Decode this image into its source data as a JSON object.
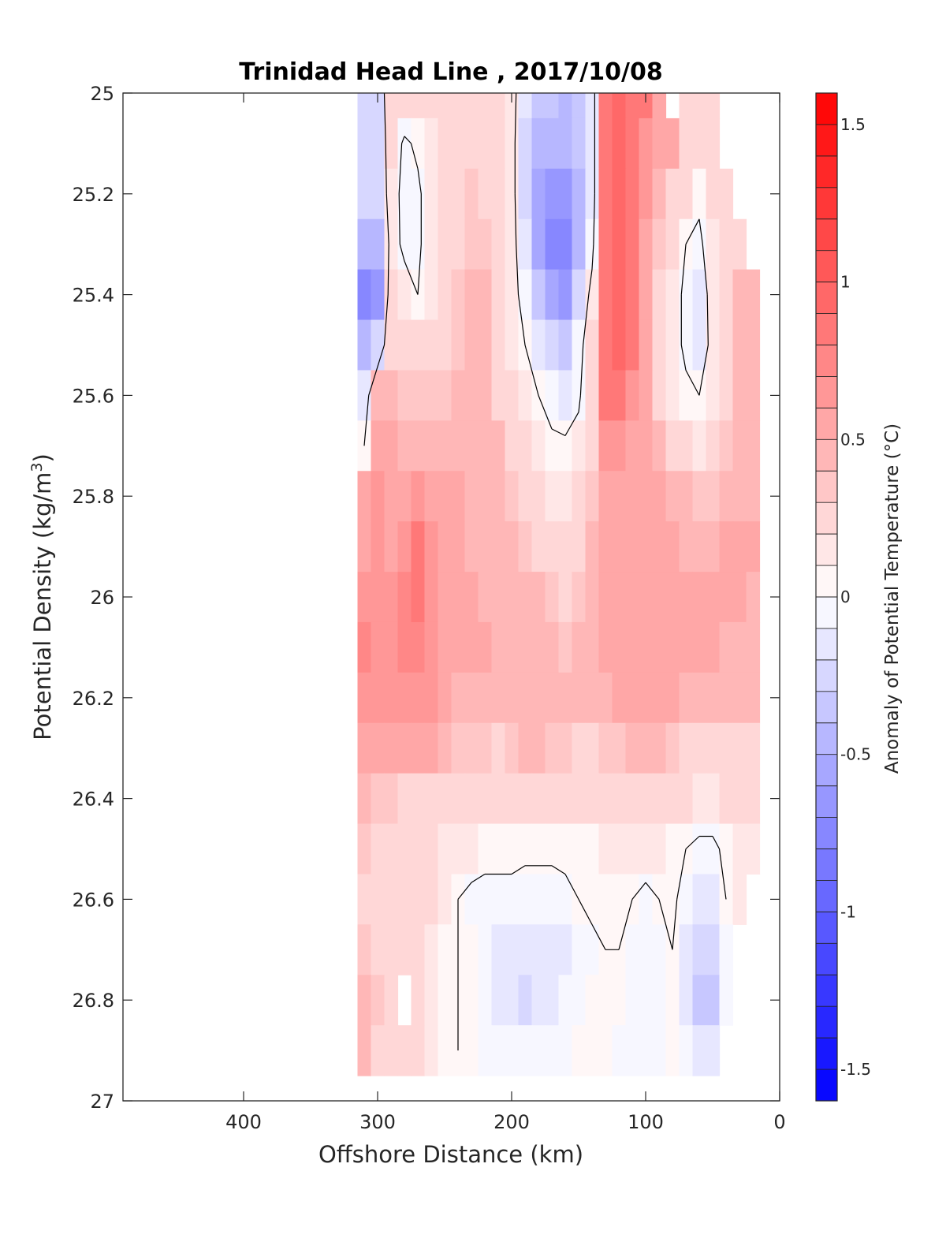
{
  "chart_data": {
    "type": "heatmap",
    "title": "Trinidad Head Line , 2017/10/08",
    "xlabel": "Offshore Distance (km)",
    "ylabel": "Potential Density (kg/m",
    "ylabel_sup": "3",
    "ylabel_close": ")",
    "colorbar_label": "Anomaly of Potential Temperature (°C)",
    "xlim": [
      490,
      0
    ],
    "ylim": [
      25,
      27
    ],
    "x_reversed": true,
    "y_reversed": true,
    "clim": [
      -1.6,
      1.6
    ],
    "contour_step": 0.1,
    "zero_contour": true,
    "x_ticks": [
      400,
      300,
      200,
      100,
      0
    ],
    "x_tick_labels": [
      "400",
      "300",
      "200",
      "100",
      "0"
    ],
    "y_ticks": [
      25,
      25.2,
      25.4,
      25.6,
      25.8,
      26,
      26.2,
      26.4,
      26.6,
      26.8,
      27
    ],
    "y_tick_labels": [
      "25",
      "25.2",
      "25.4",
      "25.6",
      "25.8",
      "26",
      "26.2",
      "26.4",
      "26.6",
      "26.8",
      "27"
    ],
    "colorbar_ticks": [
      1.5,
      1,
      0.5,
      0,
      -0.5,
      -1,
      -1.5
    ],
    "colorbar_tick_labels": [
      "1.5",
      "1",
      "0.5",
      "0",
      "-0.5",
      "-1",
      "-1.5"
    ],
    "colormap": {
      "negative": "#0000ff",
      "zero": "#ffffff",
      "positive": "#ff0000"
    },
    "x": [
      310,
      300,
      290,
      280,
      270,
      260,
      250,
      240,
      230,
      220,
      210,
      200,
      190,
      180,
      170,
      160,
      150,
      140,
      130,
      120,
      110,
      100,
      90,
      80,
      70,
      60,
      50,
      40,
      30,
      20
    ],
    "y": [
      25.0,
      25.1,
      25.2,
      25.3,
      25.4,
      25.5,
      25.6,
      25.7,
      25.8,
      25.9,
      26.0,
      26.1,
      26.2,
      26.3,
      26.4,
      26.5,
      26.6,
      26.7,
      26.8,
      26.9
    ],
    "values": [
      [
        -0.3,
        -0.3,
        0.3,
        0.3,
        0.3,
        0.3,
        0.3,
        0.3,
        0.3,
        0.3,
        0.3,
        0.1,
        -0.2,
        -0.4,
        -0.4,
        -0.5,
        -0.4,
        -0.2,
        0.8,
        0.9,
        0.8,
        0.8,
        0.6,
        null,
        0.3,
        0.2,
        0.3,
        null,
        null,
        null
      ],
      [
        -0.3,
        -0.3,
        0.2,
        -0.05,
        0.05,
        0.1,
        0.25,
        0.3,
        0.3,
        0.3,
        0.3,
        0.1,
        -0.3,
        -0.5,
        -0.5,
        -0.5,
        -0.4,
        -0.2,
        0.8,
        0.9,
        0.8,
        0.7,
        0.5,
        0.5,
        0.3,
        0.2,
        0.2,
        null,
        null,
        null
      ],
      [
        -0.3,
        -0.3,
        0.15,
        -0.1,
        -0.05,
        0.15,
        0.25,
        0.3,
        0.35,
        0.3,
        0.3,
        0.1,
        -0.3,
        -0.6,
        -0.7,
        -0.7,
        -0.5,
        -0.2,
        0.8,
        0.9,
        0.8,
        0.7,
        0.4,
        0.3,
        0.2,
        0.05,
        0.2,
        0.2,
        null,
        null
      ],
      [
        -0.5,
        -0.5,
        0.1,
        -0.05,
        -0.05,
        0.15,
        0.25,
        0.3,
        0.35,
        0.35,
        0.3,
        0.1,
        -0.2,
        -0.6,
        -0.8,
        -0.8,
        -0.5,
        -0.1,
        0.8,
        0.9,
        0.8,
        0.6,
        0.35,
        0.2,
        0.0,
        -0.05,
        0.15,
        0.2,
        0.3,
        null
      ],
      [
        -0.8,
        -0.7,
        0.2,
        0.1,
        0.0,
        0.15,
        0.25,
        0.35,
        0.4,
        0.4,
        0.3,
        0.1,
        -0.1,
        -0.4,
        -0.6,
        -0.7,
        -0.3,
        0.1,
        0.8,
        0.9,
        0.8,
        0.5,
        0.3,
        0.1,
        -0.05,
        -0.15,
        0.1,
        0.3,
        0.4,
        0.4
      ],
      [
        -0.5,
        -0.3,
        0.3,
        0.25,
        0.25,
        0.3,
        0.3,
        0.35,
        0.4,
        0.4,
        0.3,
        0.1,
        0.0,
        -0.2,
        -0.3,
        -0.4,
        -0.1,
        0.2,
        0.8,
        0.9,
        0.8,
        0.5,
        0.3,
        0.1,
        -0.05,
        -0.2,
        0.1,
        0.3,
        0.4,
        0.4
      ],
      [
        -0.2,
        0.4,
        0.4,
        0.35,
        0.35,
        0.35,
        0.35,
        0.4,
        0.4,
        0.4,
        0.3,
        0.2,
        0.1,
        0.0,
        -0.1,
        -0.2,
        -0.05,
        0.3,
        0.8,
        0.8,
        0.7,
        0.5,
        0.3,
        0.15,
        0.05,
        0.0,
        0.15,
        0.3,
        0.4,
        0.4
      ],
      [
        0.0,
        0.6,
        0.5,
        0.45,
        0.45,
        0.45,
        0.45,
        0.45,
        0.4,
        0.4,
        0.4,
        0.3,
        0.2,
        0.1,
        0.05,
        0.05,
        0.1,
        0.3,
        0.7,
        0.7,
        0.6,
        0.5,
        0.4,
        0.3,
        0.2,
        0.15,
        0.25,
        0.35,
        0.4,
        0.4
      ],
      [
        0.6,
        0.7,
        0.6,
        0.6,
        0.65,
        0.6,
        0.5,
        0.5,
        0.45,
        0.4,
        0.4,
        0.35,
        0.25,
        0.2,
        0.15,
        0.1,
        0.2,
        0.35,
        0.6,
        0.6,
        0.6,
        0.55,
        0.5,
        0.45,
        0.4,
        0.35,
        0.35,
        0.4,
        0.45,
        0.45
      ],
      [
        0.6,
        0.7,
        0.6,
        0.7,
        0.8,
        0.7,
        0.55,
        0.5,
        0.45,
        0.45,
        0.4,
        0.4,
        0.35,
        0.3,
        0.25,
        0.2,
        0.25,
        0.4,
        0.6,
        0.6,
        0.6,
        0.6,
        0.55,
        0.5,
        0.45,
        0.4,
        0.45,
        0.5,
        0.6,
        0.5
      ],
      [
        0.7,
        0.7,
        0.65,
        0.75,
        0.8,
        0.7,
        0.55,
        0.5,
        0.5,
        0.45,
        0.45,
        0.45,
        0.4,
        0.4,
        0.35,
        0.3,
        0.35,
        0.45,
        0.6,
        0.6,
        0.6,
        0.6,
        0.55,
        0.55,
        0.5,
        0.5,
        0.5,
        0.5,
        0.5,
        0.45
      ],
      [
        0.75,
        0.7,
        0.7,
        0.75,
        0.75,
        0.7,
        0.55,
        0.5,
        0.5,
        0.5,
        0.45,
        0.45,
        0.45,
        0.4,
        0.4,
        0.35,
        0.4,
        0.45,
        0.5,
        0.55,
        0.6,
        0.6,
        0.55,
        0.55,
        0.5,
        0.5,
        0.5,
        0.45,
        0.45,
        0.45
      ],
      [
        0.7,
        0.65,
        0.65,
        0.7,
        0.7,
        0.65,
        0.5,
        0.45,
        0.45,
        0.45,
        0.4,
        0.4,
        0.4,
        0.4,
        0.4,
        0.4,
        0.4,
        0.45,
        0.45,
        0.5,
        0.55,
        0.55,
        0.5,
        0.5,
        0.45,
        0.45,
        0.45,
        0.4,
        0.4,
        0.4
      ],
      [
        0.55,
        0.5,
        0.5,
        0.5,
        0.55,
        0.5,
        0.4,
        0.35,
        0.35,
        0.35,
        0.3,
        0.35,
        0.4,
        0.4,
        0.35,
        0.35,
        0.3,
        0.3,
        0.35,
        0.35,
        0.4,
        0.4,
        0.4,
        0.35,
        0.3,
        0.3,
        0.3,
        0.3,
        0.3,
        0.3
      ],
      [
        0.4,
        0.35,
        0.35,
        0.3,
        0.3,
        0.3,
        0.25,
        0.2,
        0.2,
        0.2,
        0.2,
        0.2,
        0.2,
        0.2,
        0.2,
        0.2,
        0.2,
        0.2,
        0.25,
        0.25,
        0.25,
        0.25,
        0.2,
        0.2,
        0.2,
        0.15,
        0.15,
        0.2,
        0.2,
        0.2
      ],
      [
        0.35,
        0.3,
        0.3,
        0.3,
        0.25,
        0.2,
        0.15,
        0.1,
        0.1,
        0.05,
        0.05,
        0.05,
        0.05,
        0.05,
        0.05,
        0.05,
        0.05,
        0.05,
        0.1,
        0.1,
        0.1,
        0.1,
        0.1,
        0.05,
        0.0,
        -0.05,
        -0.05,
        0.05,
        0.1,
        0.1
      ],
      [
        0.3,
        0.3,
        0.3,
        0.3,
        0.25,
        0.2,
        0.1,
        0.0,
        -0.05,
        -0.05,
        -0.05,
        -0.05,
        -0.1,
        -0.1,
        -0.1,
        -0.05,
        0.0,
        0.05,
        0.05,
        0.05,
        0.0,
        -0.05,
        0.0,
        0.05,
        -0.1,
        -0.2,
        -0.2,
        0.0,
        0.1,
        null
      ],
      [
        0.35,
        0.3,
        0.3,
        0.2,
        0.25,
        0.15,
        0.05,
        0.0,
        0.0,
        -0.1,
        -0.15,
        -0.2,
        -0.2,
        -0.2,
        -0.2,
        -0.15,
        -0.1,
        -0.05,
        0.0,
        0.0,
        -0.05,
        -0.1,
        -0.05,
        0.0,
        -0.15,
        -0.3,
        -0.3,
        -0.05,
        null,
        null
      ],
      [
        0.4,
        0.35,
        0.3,
        null,
        0.2,
        0.15,
        0.05,
        0.0,
        0.0,
        -0.1,
        -0.15,
        -0.2,
        -0.25,
        -0.2,
        -0.15,
        -0.1,
        -0.05,
        0.0,
        0.0,
        0.0,
        -0.05,
        -0.1,
        -0.05,
        0.0,
        -0.15,
        -0.35,
        -0.35,
        -0.1,
        null,
        null
      ],
      [
        0.45,
        0.3,
        0.3,
        0.2,
        0.2,
        0.1,
        0.05,
        0.0,
        0.0,
        -0.05,
        -0.1,
        -0.1,
        -0.1,
        -0.1,
        -0.05,
        -0.05,
        0.0,
        0.0,
        0.0,
        -0.05,
        -0.1,
        -0.1,
        -0.05,
        0.0,
        -0.1,
        -0.2,
        -0.15,
        null,
        null,
        null
      ]
    ]
  }
}
